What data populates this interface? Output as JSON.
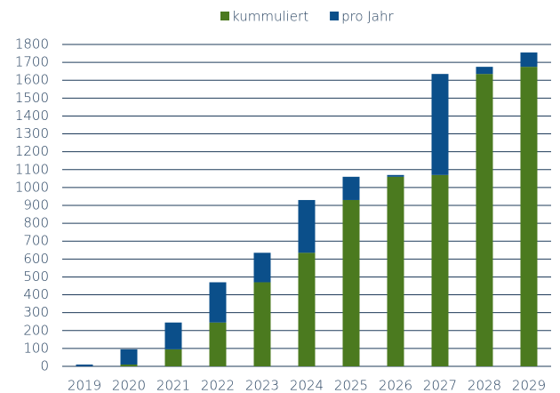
{
  "chart_data": {
    "type": "stacked_bar",
    "categories": [
      "2019",
      "2020",
      "2021",
      "2022",
      "2023",
      "2024",
      "2025",
      "2026",
      "2027",
      "2028",
      "2029"
    ],
    "series": [
      {
        "name": "kummuliert",
        "color": "#4b7a1f",
        "values": [
          0,
          10,
          95,
          245,
          470,
          635,
          930,
          1060,
          1070,
          1635,
          1675
        ]
      },
      {
        "name": "pro Jahr",
        "color": "#0b4f8a",
        "values": [
          10,
          85,
          150,
          225,
          165,
          295,
          130,
          10,
          565,
          40,
          80
        ]
      }
    ],
    "ylim": [
      0,
      1800
    ],
    "yticks": [
      0,
      100,
      200,
      300,
      400,
      500,
      600,
      700,
      800,
      900,
      1000,
      1100,
      1200,
      1300,
      1400,
      1500,
      1600,
      1700,
      1800
    ],
    "grid": true,
    "legend": "top"
  }
}
